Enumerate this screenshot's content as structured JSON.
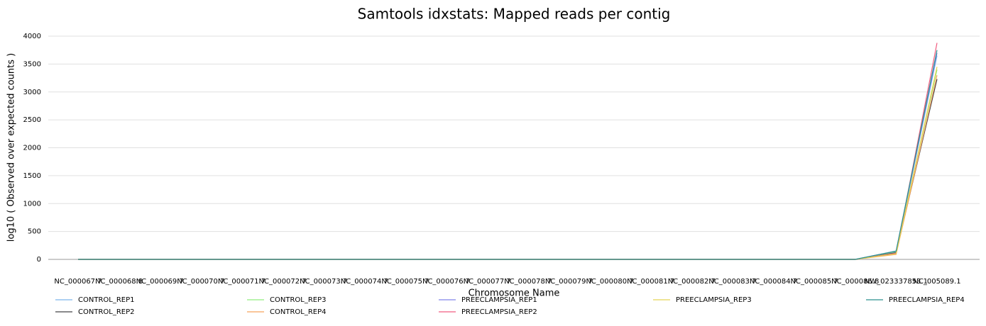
{
  "chart_data": {
    "type": "line",
    "title": "Samtools idxstats: Mapped reads per contig",
    "x_label": "Chromosome Name",
    "y_label": "log10 ( Observed over expected counts )",
    "categories": [
      "NC_000067.7",
      "NC_000068.8",
      "NC_000069.7",
      "NC_000070.7",
      "NC_000071.7",
      "NC_000072.7",
      "NC_000073.7",
      "NC_000074.7",
      "NC_000075.7",
      "NC_000076.7",
      "NC_000077.7",
      "NC_000078.7",
      "NC_000079.7",
      "NC_000080.7",
      "NC_000081.7",
      "NC_000082.7",
      "NC_000083.7",
      "NC_000084.7",
      "NC_000085.7",
      "NC_000086.8",
      "NW_023337853.1",
      "NC_005089.1"
    ],
    "ylim": [
      0,
      4000
    ],
    "yticks": [
      0,
      500,
      1000,
      1500,
      2000,
      2500,
      3000,
      3500,
      4000
    ],
    "grid": true,
    "series": [
      {
        "name": "CONTROL_REP1",
        "color": "#7cb5ec",
        "values": [
          0,
          0,
          0,
          0,
          0,
          0,
          0,
          0,
          0,
          0,
          0,
          0,
          0,
          0,
          0,
          0,
          0,
          0,
          0,
          0,
          130,
          3650
        ]
      },
      {
        "name": "CONTROL_REP2",
        "color": "#434348",
        "values": [
          0,
          0,
          0,
          0,
          0,
          0,
          0,
          0,
          0,
          0,
          0,
          0,
          0,
          0,
          0,
          0,
          0,
          0,
          0,
          0,
          120,
          3230
        ]
      },
      {
        "name": "CONTROL_REP3",
        "color": "#90ed7d",
        "values": [
          0,
          0,
          0,
          0,
          0,
          0,
          0,
          0,
          0,
          0,
          0,
          0,
          0,
          0,
          0,
          0,
          0,
          0,
          0,
          0,
          140,
          3400
        ]
      },
      {
        "name": "CONTROL_REP4",
        "color": "#f7a35c",
        "values": [
          0,
          0,
          0,
          0,
          0,
          0,
          0,
          0,
          0,
          0,
          0,
          0,
          0,
          0,
          0,
          0,
          0,
          0,
          0,
          0,
          90,
          3300
        ]
      },
      {
        "name": "PREECLAMPSIA_REP1",
        "color": "#8085e9",
        "values": [
          0,
          0,
          0,
          0,
          0,
          0,
          0,
          0,
          0,
          0,
          0,
          0,
          0,
          0,
          0,
          0,
          0,
          0,
          0,
          0,
          150,
          3700
        ]
      },
      {
        "name": "PREECLAMPSIA_REP2",
        "color": "#f15c80",
        "values": [
          0,
          0,
          0,
          0,
          0,
          0,
          0,
          0,
          0,
          0,
          0,
          0,
          0,
          0,
          0,
          0,
          0,
          0,
          0,
          0,
          110,
          3880
        ]
      },
      {
        "name": "PREECLAMPSIA_REP3",
        "color": "#e4d354",
        "values": [
          0,
          0,
          0,
          0,
          0,
          0,
          0,
          0,
          0,
          0,
          0,
          0,
          0,
          0,
          0,
          0,
          0,
          0,
          0,
          0,
          100,
          3450
        ]
      },
      {
        "name": "PREECLAMPSIA_REP4",
        "color": "#2b908f",
        "values": [
          0,
          0,
          0,
          0,
          0,
          0,
          0,
          0,
          0,
          0,
          0,
          0,
          0,
          0,
          0,
          0,
          0,
          0,
          0,
          0,
          150,
          3750
        ]
      }
    ]
  }
}
